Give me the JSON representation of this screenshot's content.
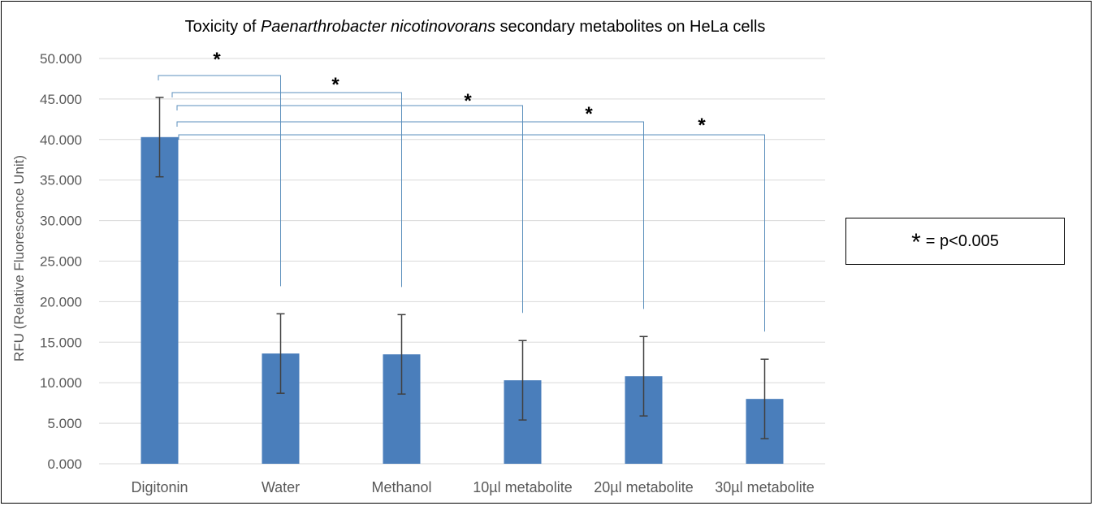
{
  "chart_data": {
    "type": "bar",
    "title_parts": [
      "Toxicity of ",
      "Paenarthrobacter nicotinovorans",
      " secondary metabolites on HeLa cells"
    ],
    "ylabel": "RFU (Relative Fluorescence Unit)",
    "xlabel": "",
    "ylim": [
      0,
      50
    ],
    "yticks": [
      "0.000",
      "5.000",
      "10.000",
      "15.000",
      "20.000",
      "25.000",
      "30.000",
      "35.000",
      "40.000",
      "45.000",
      "50.000"
    ],
    "categories": [
      "Digitonin",
      "Water",
      "Methanol",
      "10µl metabolite",
      "20µl metabolite",
      "30µl metabolite"
    ],
    "values": [
      40.3,
      13.6,
      13.5,
      10.3,
      10.8,
      8.0
    ],
    "errors": [
      4.9,
      4.9,
      4.9,
      4.9,
      4.9,
      4.9
    ],
    "grid": true,
    "bar_color": "#4a7ebb",
    "significance": {
      "symbol": "*",
      "comparisons": [
        {
          "from": "Digitonin",
          "to": "Water"
        },
        {
          "from": "Digitonin",
          "to": "Methanol"
        },
        {
          "from": "Digitonin",
          "to": "10µl metabolite"
        },
        {
          "from": "Digitonin",
          "to": "20µl metabolite"
        },
        {
          "from": "Digitonin",
          "to": "30µl metabolite"
        }
      ]
    }
  },
  "legend": {
    "symbol": "*",
    "text": "= p<0.005"
  }
}
